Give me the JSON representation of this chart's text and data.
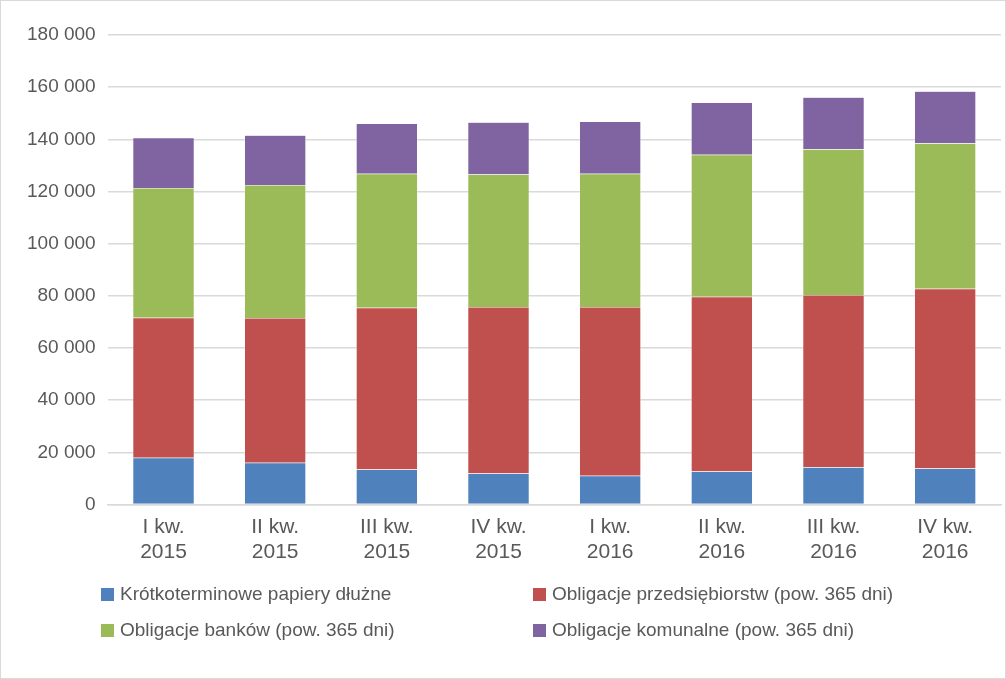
{
  "chart_data": {
    "type": "bar",
    "stacked": true,
    "categories": [
      "I kw. 2015",
      "II kw. 2015",
      "III kw. 2015",
      "IV kw. 2015",
      "I kw. 2016",
      "II kw. 2016",
      "III kw. 2016",
      "IV kw. 2016"
    ],
    "series": [
      {
        "name": "Krótkoterminowe papiery dłużne",
        "color": "#4f81bd",
        "values": [
          18000,
          16000,
          13500,
          11900,
          11100,
          12700,
          14300,
          13800
        ]
      },
      {
        "name": "Obligacje przedsiębiorstw (pow. 365 dni)",
        "color": "#c0504d",
        "values": [
          53600,
          55500,
          62000,
          63800,
          64600,
          67000,
          66000,
          68900
        ]
      },
      {
        "name": "Obligacje banków (pow. 365 dni)",
        "color": "#9bbb59",
        "values": [
          49800,
          51000,
          51300,
          50800,
          51100,
          54400,
          55900,
          55800
        ]
      },
      {
        "name": "Obligacje komunalne (pow. 365 dni)",
        "color": "#8064a2",
        "values": [
          19200,
          19100,
          19300,
          20100,
          20000,
          20000,
          19900,
          19900
        ]
      }
    ],
    "ylim": [
      0,
      180000
    ],
    "yticks": [
      {
        "value": 0,
        "label": "0"
      },
      {
        "value": 20000,
        "label": "20 000"
      },
      {
        "value": 40000,
        "label": "40 000"
      },
      {
        "value": 60000,
        "label": "60 000"
      },
      {
        "value": 80000,
        "label": "80 000"
      },
      {
        "value": 100000,
        "label": "100 000"
      },
      {
        "value": 120000,
        "label": "120 000"
      },
      {
        "value": 140000,
        "label": "140 000"
      },
      {
        "value": 160000,
        "label": "160 000"
      },
      {
        "value": 180000,
        "label": "180 000"
      }
    ],
    "grid": "y",
    "legend": "bottom"
  }
}
